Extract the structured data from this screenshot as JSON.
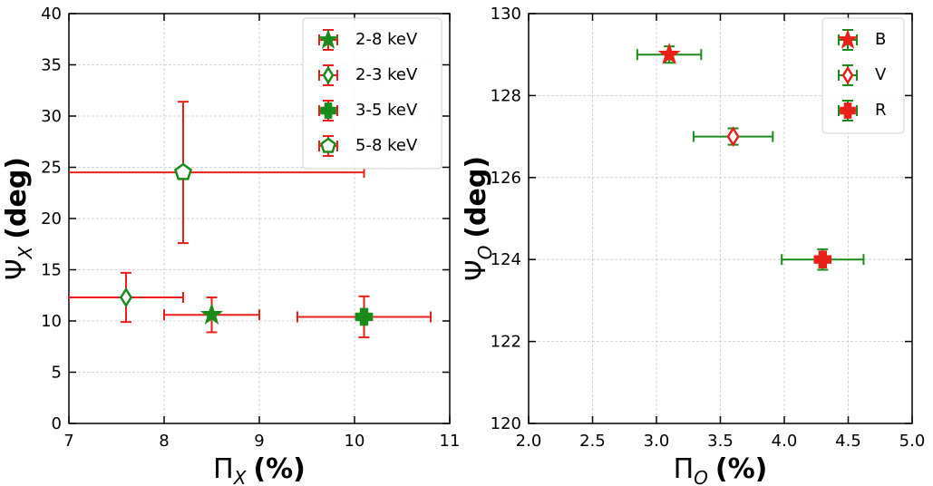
{
  "chart_data": [
    {
      "type": "scatter",
      "x_label": {
        "symbol": "Π",
        "subscript": "X",
        "unit": "(%)"
      },
      "y_label": {
        "symbol": "Ψ",
        "subscript": "X",
        "unit": "(deg)"
      },
      "xlim": [
        7,
        11
      ],
      "ylim": [
        0,
        40
      ],
      "xticks": [
        7,
        8,
        9,
        10,
        11
      ],
      "yticks": [
        0,
        5,
        10,
        15,
        20,
        25,
        30,
        35,
        40
      ],
      "grid": true,
      "legend": "upper right",
      "series": [
        {
          "name": "2-8 keV",
          "marker": "star",
          "filled": true,
          "color": "#1a8a1a",
          "ecolor": "#e8201a",
          "x": [
            8.5
          ],
          "values": [
            10.6
          ],
          "xerr": [
            0.5
          ],
          "yerr": [
            1.7
          ]
        },
        {
          "name": "2-3 keV",
          "marker": "diamond",
          "filled": false,
          "color": "#1a8a1a",
          "ecolor": "#e8201a",
          "x": [
            7.6
          ],
          "values": [
            12.3
          ],
          "xerr": [
            0.6
          ],
          "yerr": [
            2.4
          ]
        },
        {
          "name": "3-5 keV",
          "marker": "plus",
          "filled": true,
          "color": "#1a8a1a",
          "ecolor": "#e8201a",
          "x": [
            10.1
          ],
          "values": [
            10.4
          ],
          "xerr": [
            0.7
          ],
          "yerr": [
            2.0
          ]
        },
        {
          "name": "5-8 keV",
          "marker": "pentagon",
          "filled": false,
          "color": "#1a8a1a",
          "ecolor": "#e8201a",
          "x": [
            8.2
          ],
          "values": [
            24.5
          ],
          "xerr": [
            1.9
          ],
          "yerr": [
            6.9
          ]
        }
      ]
    },
    {
      "type": "scatter",
      "x_label": {
        "symbol": "Π",
        "subscript": "O",
        "unit": "(%)"
      },
      "y_label": {
        "symbol": "Ψ",
        "subscript": "O",
        "unit": "(deg)"
      },
      "xlim": [
        2.0,
        5.0
      ],
      "ylim": [
        120,
        130
      ],
      "xticks": [
        {
          "value": 2,
          "label": "2.0"
        },
        2.5,
        {
          "value": 3,
          "label": "3.0"
        },
        3.5,
        {
          "value": 4,
          "label": "4.0"
        },
        4.5,
        {
          "value": 5,
          "label": "5.0"
        }
      ],
      "yticks": [
        120,
        122,
        124,
        126,
        128,
        130
      ],
      "grid": true,
      "legend": "upper right",
      "series": [
        {
          "name": "B",
          "marker": "star",
          "filled": true,
          "color": "#e8201a",
          "ecolor": "#1a8a1a",
          "x": [
            3.1
          ],
          "values": [
            129.0
          ],
          "xerr": [
            0.25
          ],
          "yerr": [
            0.2
          ]
        },
        {
          "name": "V",
          "marker": "diamond",
          "filled": false,
          "color": "#e8201a",
          "ecolor": "#1a8a1a",
          "x": [
            3.6
          ],
          "values": [
            127.0
          ],
          "xerr": [
            0.31
          ],
          "yerr": [
            0.2
          ]
        },
        {
          "name": "R",
          "marker": "plus",
          "filled": true,
          "color": "#e8201a",
          "ecolor": "#1a8a1a",
          "x": [
            4.3
          ],
          "values": [
            124.0
          ],
          "xerr": [
            0.32
          ],
          "yerr": [
            0.25
          ]
        }
      ]
    }
  ]
}
